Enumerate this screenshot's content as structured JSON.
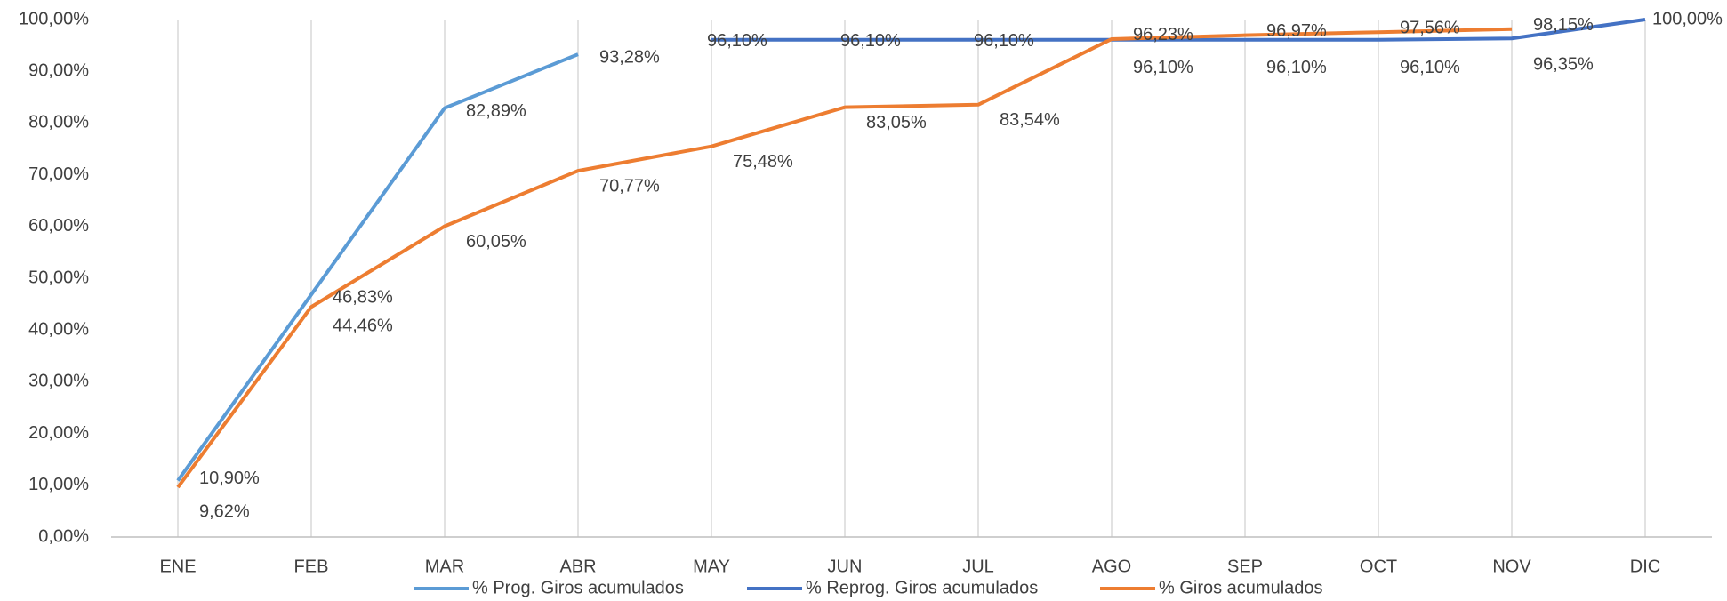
{
  "chart_data": {
    "type": "line",
    "categories": [
      "ENE",
      "FEB",
      "MAR",
      "ABR",
      "MAY",
      "JUN",
      "JUL",
      "AGO",
      "SEP",
      "OCT",
      "NOV",
      "DIC"
    ],
    "series": [
      {
        "name": "% Prog. Giros acumulados",
        "color": "#5b9bd5",
        "values": [
          10.9,
          46.83,
          82.89,
          93.28,
          null,
          null,
          null,
          null,
          null,
          null,
          null,
          null
        ],
        "value_labels": [
          "10,90%",
          "46,83%",
          "82,89%",
          "93,28%",
          null,
          null,
          null,
          null,
          null,
          null,
          null,
          null
        ]
      },
      {
        "name": "% Reprog. Giros acumulados",
        "color": "#4472c4",
        "values": [
          null,
          null,
          null,
          null,
          96.1,
          96.1,
          96.1,
          96.1,
          96.1,
          96.1,
          96.35,
          100.0
        ],
        "value_labels": [
          null,
          null,
          null,
          null,
          "96,10%",
          "96,10%",
          "96,10%",
          "96,10%",
          "96,10%",
          "96,10%",
          "96,35%",
          "100,00%"
        ]
      },
      {
        "name": "% Giros acumulados",
        "color": "#ed7d31",
        "values": [
          9.62,
          44.46,
          60.05,
          70.77,
          75.48,
          83.05,
          83.54,
          96.23,
          96.97,
          97.56,
          98.15,
          null
        ],
        "value_labels": [
          "9,62%",
          "44,46%",
          "60,05%",
          "70,77%",
          "75,48%",
          "83,05%",
          "83,54%",
          "96,23%",
          "96,97%",
          "97,56%",
          "98,15%",
          null
        ]
      }
    ],
    "ylim": [
      0,
      100
    ],
    "yticks": [
      {
        "value": 0,
        "label": "0,00%"
      },
      {
        "value": 10,
        "label": "10,00%"
      },
      {
        "value": 20,
        "label": "20,00%"
      },
      {
        "value": 30,
        "label": "30,00%"
      },
      {
        "value": 40,
        "label": "40,00%"
      },
      {
        "value": 50,
        "label": "50,00%"
      },
      {
        "value": 60,
        "label": "60,00%"
      },
      {
        "value": 70,
        "label": "70,00%"
      },
      {
        "value": 80,
        "label": "80,00%"
      },
      {
        "value": 90,
        "label": "90,00%"
      },
      {
        "value": 100,
        "label": "100,00%"
      }
    ],
    "category_grid": true,
    "legend": "bottom"
  }
}
